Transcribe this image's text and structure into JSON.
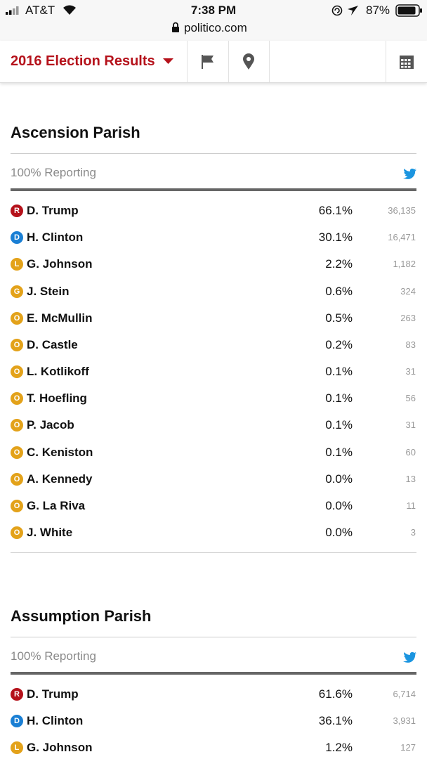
{
  "status_bar": {
    "carrier": "AT&T",
    "time": "7:38 PM",
    "battery": "87%",
    "url": "politico.com"
  },
  "nav": {
    "title": "2016 Election Results"
  },
  "sections": [
    {
      "title": "Ascension Parish",
      "reporting": "100% Reporting",
      "rows": [
        {
          "party": "R",
          "name": "D. Trump",
          "pct": "66.1%",
          "votes": "36,135"
        },
        {
          "party": "D",
          "name": "H. Clinton",
          "pct": "30.1%",
          "votes": "16,471"
        },
        {
          "party": "L",
          "name": "G. Johnson",
          "pct": "2.2%",
          "votes": "1,182"
        },
        {
          "party": "G",
          "name": "J. Stein",
          "pct": "0.6%",
          "votes": "324"
        },
        {
          "party": "O",
          "name": "E. McMullin",
          "pct": "0.5%",
          "votes": "263"
        },
        {
          "party": "O",
          "name": "D. Castle",
          "pct": "0.2%",
          "votes": "83"
        },
        {
          "party": "O",
          "name": "L. Kotlikoff",
          "pct": "0.1%",
          "votes": "31"
        },
        {
          "party": "O",
          "name": "T. Hoefling",
          "pct": "0.1%",
          "votes": "56"
        },
        {
          "party": "O",
          "name": "P. Jacob",
          "pct": "0.1%",
          "votes": "31"
        },
        {
          "party": "O",
          "name": "C. Keniston",
          "pct": "0.1%",
          "votes": "60"
        },
        {
          "party": "O",
          "name": "A. Kennedy",
          "pct": "0.0%",
          "votes": "13"
        },
        {
          "party": "O",
          "name": "G. La Riva",
          "pct": "0.0%",
          "votes": "11"
        },
        {
          "party": "O",
          "name": "J. White",
          "pct": "0.0%",
          "votes": "3"
        }
      ]
    },
    {
      "title": "Assumption Parish",
      "reporting": "100% Reporting",
      "rows": [
        {
          "party": "R",
          "name": "D. Trump",
          "pct": "61.6%",
          "votes": "6,714"
        },
        {
          "party": "D",
          "name": "H. Clinton",
          "pct": "36.1%",
          "votes": "3,931"
        },
        {
          "party": "L",
          "name": "G. Johnson",
          "pct": "1.2%",
          "votes": "127"
        }
      ]
    }
  ]
}
